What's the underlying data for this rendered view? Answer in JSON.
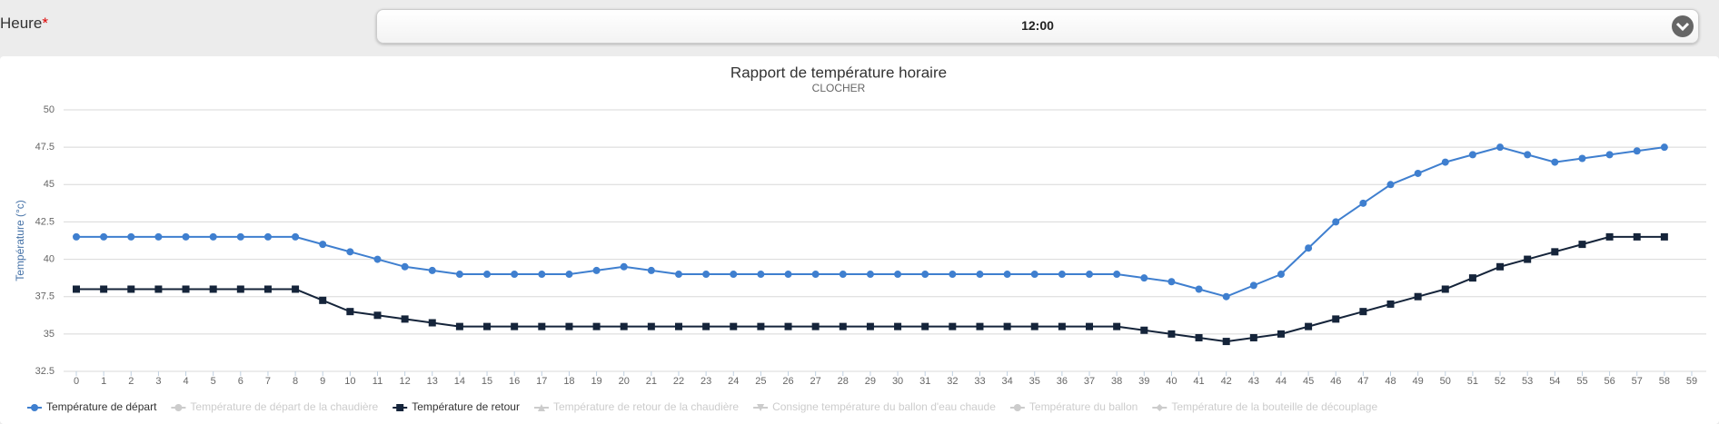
{
  "form": {
    "label": "Heure",
    "required_mark": "*",
    "selected": "12:00"
  },
  "chart_data": {
    "type": "line",
    "title": "Rapport de température horaire",
    "subtitle": "CLOCHER",
    "y_label": "Température (°c)",
    "categories": [
      "0",
      "1",
      "2",
      "3",
      "4",
      "5",
      "6",
      "7",
      "8",
      "9",
      "10",
      "11",
      "12",
      "13",
      "14",
      "15",
      "16",
      "17",
      "18",
      "19",
      "20",
      "21",
      "22",
      "23",
      "24",
      "25",
      "26",
      "27",
      "28",
      "29",
      "30",
      "31",
      "32",
      "33",
      "34",
      "35",
      "36",
      "37",
      "38",
      "39",
      "40",
      "41",
      "42",
      "43",
      "44",
      "45",
      "46",
      "47",
      "48",
      "49",
      "50",
      "51",
      "52",
      "53",
      "54",
      "55",
      "56",
      "57",
      "58",
      "59"
    ],
    "ylim": [
      32.5,
      50
    ],
    "yticks": [
      32.5,
      35,
      37.5,
      40,
      42.5,
      45,
      47.5,
      50
    ],
    "grid": true,
    "legend": "bottom-left",
    "series": [
      {
        "name": "Température de départ",
        "color": "#3f7fcf",
        "marker": "circle",
        "visible": true,
        "values": [
          41.5,
          41.5,
          41.5,
          41.5,
          41.5,
          41.5,
          41.5,
          41.5,
          41.5,
          41,
          40.5,
          40,
          39.5,
          39.25,
          39,
          39,
          39,
          39,
          39,
          39.25,
          39.5,
          39.25,
          39,
          39,
          39,
          39,
          39,
          39,
          39,
          39,
          39,
          39,
          39,
          39,
          39,
          39,
          39,
          39,
          39,
          38.75,
          38.5,
          38,
          37.5,
          38.25,
          39,
          40.75,
          42.5,
          43.75,
          45,
          45.75,
          46.5,
          47,
          47.5,
          47,
          46.5,
          46.75,
          47,
          47.25,
          47.5,
          null
        ]
      },
      {
        "name": "Température de départ de la chaudière",
        "color": "#cccccc",
        "marker": "circle",
        "visible": false
      },
      {
        "name": "Température de retour",
        "color": "#15243a",
        "marker": "square",
        "visible": true,
        "values": [
          38,
          38,
          38,
          38,
          38,
          38,
          38,
          38,
          38,
          37.25,
          36.5,
          36.25,
          36,
          35.75,
          35.5,
          35.5,
          35.5,
          35.5,
          35.5,
          35.5,
          35.5,
          35.5,
          35.5,
          35.5,
          35.5,
          35.5,
          35.5,
          35.5,
          35.5,
          35.5,
          35.5,
          35.5,
          35.5,
          35.5,
          35.5,
          35.5,
          35.5,
          35.5,
          35.5,
          35.25,
          35,
          34.75,
          34.5,
          34.75,
          35,
          35.5,
          36,
          36.5,
          37,
          37.5,
          38,
          38.75,
          39.5,
          40,
          40.5,
          41,
          41.5,
          41.5,
          41.5,
          null
        ]
      },
      {
        "name": "Température de retour de la chaudière",
        "color": "#cccccc",
        "marker": "triangle",
        "visible": false
      },
      {
        "name": "Consigne température du ballon d'eau chaude",
        "color": "#cccccc",
        "marker": "triangle-down",
        "visible": false
      },
      {
        "name": "Température du ballon",
        "color": "#cccccc",
        "marker": "circle",
        "visible": false
      },
      {
        "name": "Température de la bouteille de découplage",
        "color": "#cccccc",
        "marker": "diamond",
        "visible": false
      }
    ]
  }
}
